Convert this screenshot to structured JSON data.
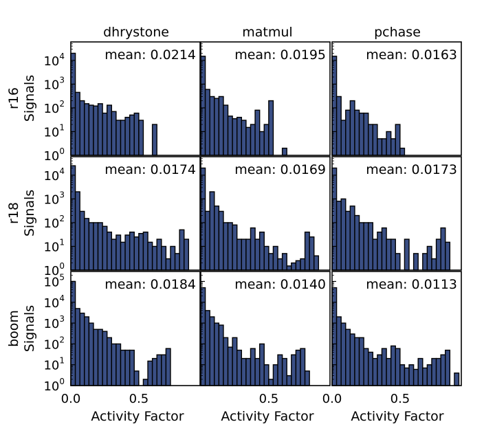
{
  "figure": {
    "column_titles": [
      "dhrystone",
      "matmul",
      "pchase"
    ],
    "row_labels": [
      {
        "top": "r16",
        "bottom": "Signals"
      },
      {
        "top": "r18",
        "bottom": "Signals"
      },
      {
        "top": "boom",
        "bottom": "Signals"
      }
    ],
    "xlabel": "Activity Factor",
    "bar_color": "#3a4f85",
    "edge_color": "#000000"
  },
  "chart_data": [
    {
      "type": "bar",
      "row": "r16",
      "column": "dhrystone",
      "annotation": "mean: 0.0214",
      "scale": "log",
      "ylim": [
        1,
        60000
      ],
      "xlim": [
        0,
        0.95
      ],
      "bin_width": 0.0333,
      "x_ticks": [
        "0.0",
        "0.5"
      ],
      "y_ticks": [
        {
          "base": "10",
          "exp": "0"
        },
        {
          "base": "10",
          "exp": "1"
        },
        {
          "base": "10",
          "exp": "2"
        },
        {
          "base": "10",
          "exp": "3"
        },
        {
          "base": "10",
          "exp": "4"
        }
      ],
      "values": [
        20000,
        450,
        200,
        150,
        130,
        120,
        150,
        60,
        130,
        70,
        30,
        30,
        40,
        50,
        60,
        30,
        1,
        1,
        20,
        1,
        1,
        1,
        1,
        1,
        1,
        1,
        1,
        1
      ]
    },
    {
      "type": "bar",
      "row": "r16",
      "column": "matmul",
      "annotation": "mean: 0.0195",
      "scale": "log",
      "ylim": [
        1,
        60000
      ],
      "xlim": [
        0,
        0.95
      ],
      "bin_width": 0.0333,
      "x_ticks": [],
      "y_ticks": [],
      "values": [
        15000,
        600,
        300,
        250,
        300,
        130,
        45,
        35,
        40,
        30,
        15,
        20,
        80,
        10,
        20,
        200,
        1,
        1,
        2,
        1,
        1,
        1,
        1,
        1,
        1,
        1,
        1,
        1
      ]
    },
    {
      "type": "bar",
      "row": "r16",
      "column": "pchase",
      "annotation": "mean: 0.0163",
      "scale": "log",
      "ylim": [
        1,
        60000
      ],
      "xlim": [
        0,
        0.95
      ],
      "bin_width": 0.0333,
      "x_ticks": [],
      "y_ticks": [],
      "values": [
        15000,
        300,
        30,
        80,
        200,
        80,
        60,
        60,
        20,
        20,
        5,
        5,
        10,
        5,
        20,
        2,
        1,
        1,
        1,
        1,
        1,
        1,
        1,
        1,
        1,
        1,
        1,
        1
      ]
    },
    {
      "type": "bar",
      "row": "r18",
      "column": "dhrystone",
      "annotation": "mean: 0.0174",
      "scale": "log",
      "ylim": [
        1,
        60000
      ],
      "xlim": [
        0,
        0.95
      ],
      "bin_width": 0.0333,
      "x_ticks": [
        "0.0",
        "0.5"
      ],
      "y_ticks": [
        {
          "base": "10",
          "exp": "0"
        },
        {
          "base": "10",
          "exp": "1"
        },
        {
          "base": "10",
          "exp": "2"
        },
        {
          "base": "10",
          "exp": "3"
        },
        {
          "base": "10",
          "exp": "4"
        }
      ],
      "values": [
        25000,
        2000,
        300,
        150,
        100,
        100,
        100,
        70,
        40,
        20,
        30,
        15,
        30,
        40,
        25,
        35,
        40,
        15,
        10,
        20,
        10,
        3,
        10,
        5,
        50,
        20,
        0,
        0
      ]
    },
    {
      "type": "bar",
      "row": "r18",
      "column": "matmul",
      "annotation": "mean: 0.0169",
      "scale": "log",
      "ylim": [
        1,
        60000
      ],
      "xlim": [
        0,
        0.95
      ],
      "bin_width": 0.0333,
      "x_ticks": [],
      "y_ticks": [],
      "values": [
        20000,
        300,
        2000,
        500,
        300,
        100,
        100,
        80,
        20,
        20,
        20,
        60,
        20,
        40,
        10,
        5,
        10,
        3,
        5,
        1.5,
        2,
        2.5,
        3,
        40,
        25,
        4,
        0,
        0
      ]
    },
    {
      "type": "bar",
      "row": "r18",
      "column": "pchase",
      "annotation": "mean: 0.0173",
      "scale": "log",
      "ylim": [
        1,
        60000
      ],
      "xlim": [
        0,
        0.95
      ],
      "bin_width": 0.0333,
      "x_ticks": [],
      "y_ticks": [],
      "values": [
        20000,
        800,
        1000,
        300,
        500,
        200,
        100,
        100,
        100,
        20,
        40,
        60,
        20,
        20,
        5,
        1,
        20,
        1,
        5,
        1,
        5,
        10,
        3,
        20,
        60,
        15,
        0,
        0
      ]
    },
    {
      "type": "bar",
      "row": "boom",
      "column": "dhrystone",
      "annotation": "mean: 0.0184",
      "scale": "log",
      "ylim": [
        1,
        300000
      ],
      "xlim": [
        0,
        0.95
      ],
      "bin_width": 0.0333,
      "x_ticks": [
        "0.0",
        "0.5"
      ],
      "y_ticks": [
        {
          "base": "10",
          "exp": "0"
        },
        {
          "base": "10",
          "exp": "1"
        },
        {
          "base": "10",
          "exp": "2"
        },
        {
          "base": "10",
          "exp": "3"
        },
        {
          "base": "10",
          "exp": "4"
        },
        {
          "base": "10",
          "exp": "5"
        }
      ],
      "values": [
        100000,
        5000,
        3000,
        2000,
        1000,
        500,
        500,
        400,
        200,
        100,
        100,
        50,
        50,
        50,
        5,
        1,
        2,
        15,
        20,
        30,
        30,
        60,
        0,
        0,
        0,
        0,
        0,
        0
      ]
    },
    {
      "type": "bar",
      "row": "boom",
      "column": "matmul",
      "annotation": "mean: 0.0140",
      "scale": "log",
      "ylim": [
        1,
        300000
      ],
      "xlim": [
        0,
        0.95
      ],
      "bin_width": 0.0333,
      "x_ticks": [
        "0.5"
      ],
      "y_ticks": [],
      "values": [
        50000,
        4000,
        2000,
        1000,
        800,
        200,
        70,
        200,
        50,
        20,
        20,
        60,
        20,
        100,
        10,
        2,
        10,
        30,
        20,
        3,
        30,
        50,
        60,
        5,
        0,
        0,
        0,
        0
      ]
    },
    {
      "type": "bar",
      "row": "boom",
      "column": "pchase",
      "annotation": "mean: 0.0113",
      "scale": "log",
      "ylim": [
        1,
        300000
      ],
      "xlim": [
        0,
        0.95
      ],
      "bin_width": 0.0333,
      "x_ticks": [
        "0.0",
        "0.5"
      ],
      "y_ticks": [],
      "values": [
        50000,
        2000,
        1000,
        500,
        300,
        200,
        200,
        60,
        40,
        20,
        30,
        60,
        20,
        80,
        60,
        10,
        7,
        10,
        6,
        20,
        7,
        10,
        20,
        20,
        30,
        50,
        1,
        4
      ]
    }
  ]
}
